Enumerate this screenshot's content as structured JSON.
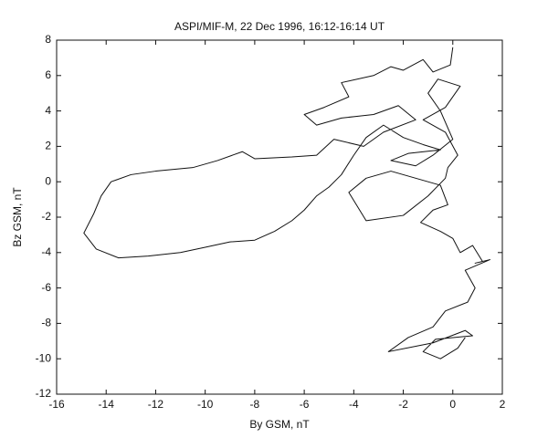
{
  "chart_data": {
    "type": "line",
    "title": "ASPI/MIF-M, 22 Dec 1996, 16:12-16:14 UT",
    "xlabel": "By GSM, nT",
    "ylabel": "Bz GSM, nT",
    "xlim": [
      -16,
      2
    ],
    "xticks": [
      -16,
      -14,
      -12,
      -10,
      -8,
      -6,
      -4,
      -2,
      0,
      2
    ],
    "ylim": [
      -12,
      8
    ],
    "yticks": [
      -12,
      -10,
      -8,
      -6,
      -4,
      -2,
      0,
      2,
      4,
      6,
      8
    ],
    "grid": false,
    "color": "#111111",
    "x": [
      0,
      -0.1,
      -0.8,
      -1.2,
      -2,
      -2.5,
      -3.2,
      -4.5,
      -4.2,
      -5.2,
      -6,
      -5.5,
      -4.5,
      -3.2,
      -2.2,
      -1.5,
      -2.8,
      -3.6,
      -4.8,
      -5.5,
      -6.5,
      -8,
      -8.5,
      -9.5,
      -10.5,
      -12,
      -13,
      -13.8,
      -14.2,
      -14.5,
      -14.9,
      -14.4,
      -13.5,
      -12.3,
      -11,
      -10,
      -9,
      -8,
      -7.2,
      -6.5,
      -6,
      -5.5,
      -5,
      -4.5,
      -4,
      -3.5,
      -2.8,
      -2,
      -1.2,
      -0.5,
      -1.8,
      -2.5,
      -1.5,
      -0.8,
      0,
      -0.5,
      -1,
      -0.6,
      0.3,
      -0.3,
      -1.2,
      -0.3,
      0.2,
      -0.2,
      -0.3,
      -1,
      -2,
      -3.5,
      -4.2,
      -3.5,
      -2.5,
      -1.5,
      -0.5,
      -0.2,
      -0.8,
      -1.3,
      -0.5,
      0,
      0.3,
      0.8,
      1.2,
      0.9,
      1.5,
      0.5,
      0.9,
      0.6,
      -0.3,
      -0.8,
      -1.8,
      -2.6,
      -0.8,
      0.5,
      0.8,
      -0.7,
      -1.2,
      -0.5,
      0.2,
      0.5
    ],
    "values": [
      7.6,
      6.6,
      6.2,
      6.9,
      6.3,
      6.5,
      6,
      5.6,
      4.8,
      4.2,
      3.8,
      3.2,
      3.6,
      3.8,
      4.3,
      3.5,
      2.8,
      2,
      2.4,
      1.5,
      1.4,
      1.3,
      1.7,
      1.2,
      0.8,
      0.6,
      0.4,
      0,
      -0.8,
      -1.8,
      -2.9,
      -3.8,
      -4.3,
      -4.2,
      -4,
      -3.7,
      -3.4,
      -3.3,
      -2.8,
      -2.2,
      -1.6,
      -0.8,
      -0.3,
      0.4,
      1.5,
      2.5,
      3.2,
      2.5,
      2.1,
      1.8,
      1.6,
      1.2,
      0.9,
      1.5,
      2.4,
      4,
      5,
      5.8,
      5.4,
      4.2,
      3.5,
      2.8,
      1.5,
      0.8,
      0.2,
      -0.8,
      -1.9,
      -2.2,
      -0.6,
      0.2,
      0.6,
      0.2,
      -0.2,
      -1.3,
      -1.6,
      -2.3,
      -2.8,
      -3.2,
      -4,
      -3.6,
      -4.5,
      -4.6,
      -4.4,
      -5,
      -6,
      -6.8,
      -7.3,
      -8.2,
      -8.8,
      -9.6,
      -9.1,
      -8.4,
      -8.7,
      -8.9,
      -9.6,
      -10,
      -9.4,
      -8.8
    ]
  }
}
